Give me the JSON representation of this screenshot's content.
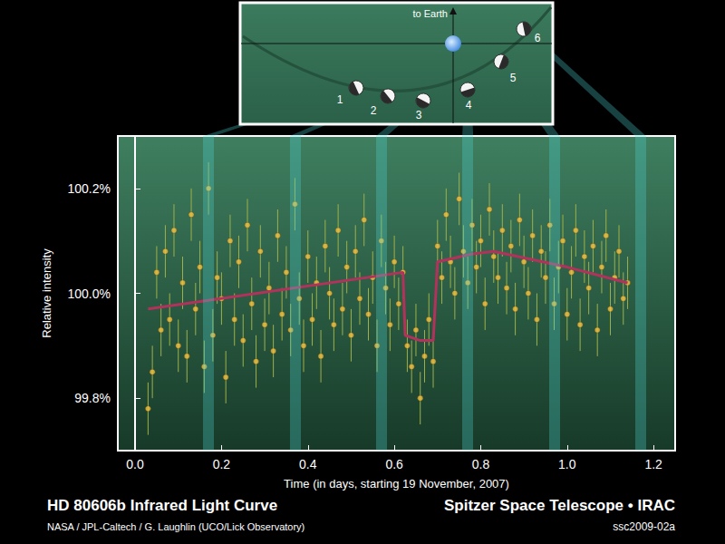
{
  "chart_data": {
    "type": "scatter",
    "title": "HD 80606b Infrared Light Curve",
    "subtitle": "NASA / JPL-Caltech / G. Laughlin (UCO/Lick Observatory)",
    "annotations": [
      "Spitzer Space Telescope • IRAC",
      "ssc2009-02a"
    ],
    "x_label": "Time (in days, starting 19 November, 2007)",
    "y_label": "Relative intensity",
    "xlim": [
      -0.04,
      1.25
    ],
    "xticks": [
      {
        "value": 0,
        "label": "0.0"
      },
      0.2,
      0.4,
      0.6,
      0.8,
      {
        "value": 1,
        "label": "1.0"
      },
      1.2
    ],
    "ylim": [
      99.7,
      100.3
    ],
    "yticks": [
      {
        "value": 99.8,
        "label": "99.8%"
      },
      {
        "value": 100,
        "label": "100.0%"
      },
      {
        "value": 100.2,
        "label": "100.2%"
      }
    ],
    "grid": false,
    "bands": [
      0.17,
      0.37,
      0.57,
      0.77,
      0.97,
      1.17
    ],
    "inset": {
      "label": "to Earth",
      "positions": [
        "1",
        "2",
        "3",
        "4",
        "5",
        "6"
      ]
    },
    "series": [
      {
        "type": "scatter",
        "color": "#f5c242",
        "marker": "circle",
        "error": 0.05,
        "x": [
          0.03,
          0.04,
          0.05,
          0.06,
          0.07,
          0.08,
          0.09,
          0.1,
          0.11,
          0.12,
          0.13,
          0.14,
          0.15,
          0.16,
          0.17,
          0.18,
          0.19,
          0.2,
          0.21,
          0.22,
          0.23,
          0.24,
          0.25,
          0.26,
          0.27,
          0.28,
          0.29,
          0.3,
          0.31,
          0.32,
          0.33,
          0.34,
          0.35,
          0.36,
          0.37,
          0.38,
          0.39,
          0.4,
          0.41,
          0.42,
          0.43,
          0.44,
          0.45,
          0.46,
          0.47,
          0.48,
          0.49,
          0.5,
          0.51,
          0.52,
          0.53,
          0.54,
          0.55,
          0.56,
          0.57,
          0.58,
          0.59,
          0.6,
          0.61,
          0.62,
          0.63,
          0.64,
          0.65,
          0.66,
          0.67,
          0.68,
          0.69,
          0.7,
          0.71,
          0.72,
          0.73,
          0.74,
          0.75,
          0.76,
          0.77,
          0.78,
          0.79,
          0.8,
          0.81,
          0.82,
          0.83,
          0.84,
          0.85,
          0.86,
          0.87,
          0.88,
          0.89,
          0.9,
          0.91,
          0.92,
          0.93,
          0.94,
          0.95,
          0.96,
          0.97,
          0.98,
          0.99,
          1.0,
          1.01,
          1.02,
          1.03,
          1.04,
          1.05,
          1.06,
          1.07,
          1.08,
          1.09,
          1.1,
          1.11,
          1.12,
          1.13,
          1.14
        ],
        "values": [
          99.78,
          99.85,
          100.04,
          99.93,
          100.08,
          99.95,
          100.12,
          99.9,
          100.02,
          99.88,
          100.15,
          99.97,
          100.05,
          99.86,
          100.2,
          99.92,
          100.03,
          99.99,
          99.84,
          100.1,
          99.95,
          100.06,
          99.91,
          100.13,
          99.98,
          99.87,
          100.08,
          99.94,
          100.01,
          99.89,
          100.11,
          99.96,
          100.04,
          99.93,
          100.17,
          99.99,
          99.9,
          100.07,
          99.95,
          100.02,
          99.88,
          100.09,
          100.0,
          99.94,
          100.12,
          99.97,
          100.05,
          99.92,
          100.08,
          99.99,
          100.14,
          99.96,
          100.03,
          99.9,
          100.1,
          100.01,
          99.94,
          100.06,
          99.98,
          100.04,
          99.9,
          99.86,
          99.93,
          99.8,
          99.88,
          99.95,
          99.87,
          100.09,
          100.03,
          100.15,
          100.06,
          100.0,
          100.18,
          100.08,
          100.02,
          100.13,
          100.05,
          100.1,
          99.98,
          100.16,
          100.07,
          100.03,
          100.12,
          100.01,
          100.09,
          99.97,
          100.14,
          100.06,
          100.0,
          100.11,
          99.95,
          100.08,
          100.03,
          100.13,
          99.98,
          100.05,
          100.1,
          99.96,
          100.04,
          100.12,
          99.94,
          100.07,
          100.01,
          100.09,
          99.93,
          100.05,
          100.11,
          99.97,
          100.03,
          100.08,
          99.99,
          100.02
        ]
      },
      {
        "type": "line",
        "color": "#b3325c",
        "line_style": "solid",
        "x": [
          0.03,
          0.62,
          0.625,
          0.66,
          0.69,
          0.7,
          0.78,
          0.83,
          1.0,
          1.14
        ],
        "values": [
          99.97,
          100.04,
          99.92,
          99.91,
          99.91,
          100.06,
          100.075,
          100.08,
          100.05,
          100.02
        ]
      }
    ]
  }
}
